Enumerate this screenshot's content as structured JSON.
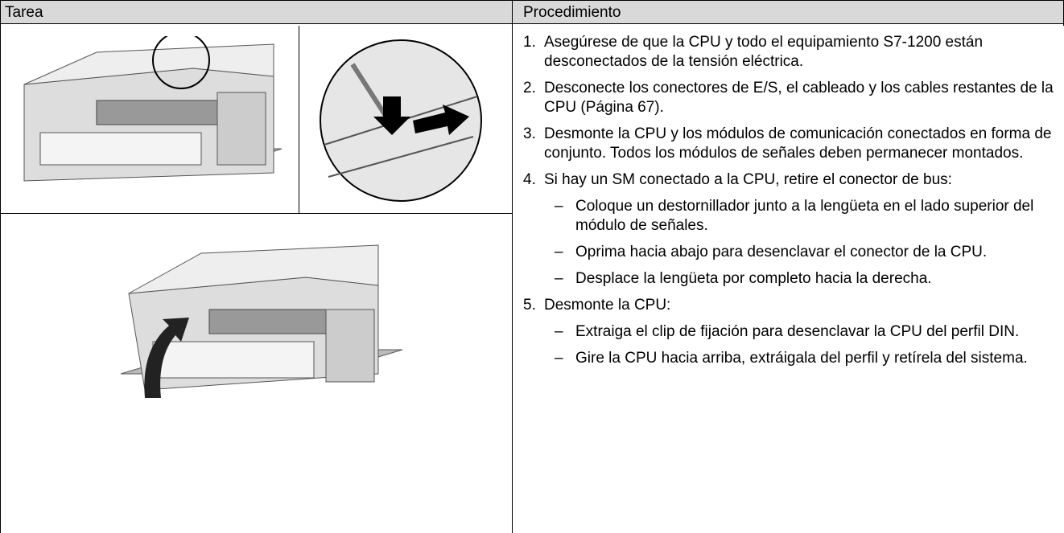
{
  "header": {
    "tarea": "Tarea",
    "procedimiento": "Procedimiento"
  },
  "steps": [
    {
      "number": "1.",
      "text": "Asegúrese de que la CPU y todo el equipamiento S7-1200 están desconectados de la tensión eléctrica."
    },
    {
      "number": "2.",
      "text": "Desconecte los conectores de E/S, el cableado y los cables restantes de la CPU (Página 67)."
    },
    {
      "number": "3.",
      "text": "Desmonte la CPU y los módulos de comunicación conectados en forma de conjunto. Todos los módulos de señales deben permanecer montados."
    },
    {
      "number": "4.",
      "text": "Si hay un SM conectado a la CPU, retire el conector de bus:",
      "substeps": [
        {
          "marker": "–",
          "text": "Coloque un destornillador junto a la lengüeta en el lado superior del módulo de señales."
        },
        {
          "marker": "–",
          "text": "Oprima hacia abajo para desenclavar el conector de la CPU."
        },
        {
          "marker": "–",
          "text": "Desplace la lengüeta por completo hacia la derecha."
        }
      ]
    },
    {
      "number": "5.",
      "text": "Desmonte la CPU:",
      "substeps": [
        {
          "marker": "–",
          "text": "Extraiga el clip de fijación para desenclavar la CPU del perfil DIN."
        },
        {
          "marker": "–",
          "text": "Gire la CPU hacia arriba, extráigala del perfil y retírela del sistema."
        }
      ]
    }
  ]
}
